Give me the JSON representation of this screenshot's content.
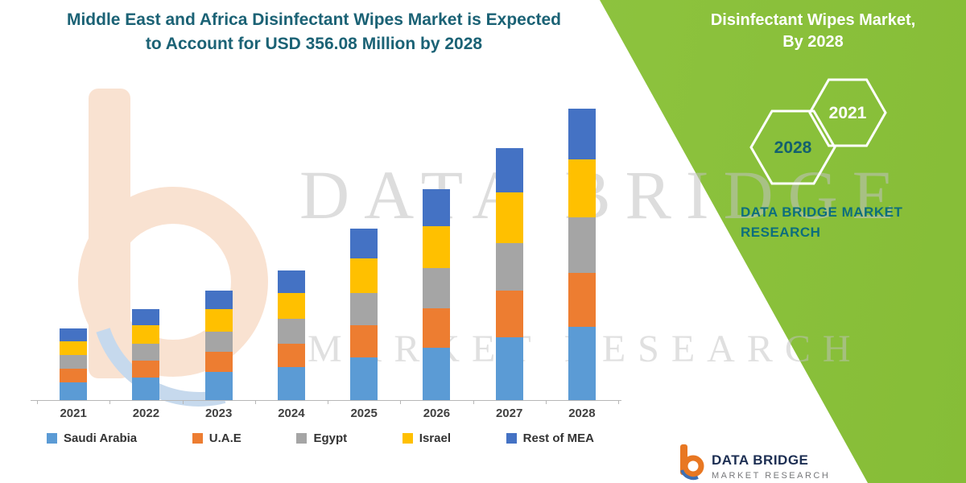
{
  "header": {
    "title_line1": "Middle East and Africa Disinfectant Wipes Market is Expected",
    "title_line2": "to Account for USD 356.08 Million by 2028"
  },
  "side_panel": {
    "heading_line1": "Disinfectant Wipes Market,",
    "heading_line2": "By 2028",
    "hexagons": [
      "2028",
      "2021"
    ],
    "brand_line1": "DATA BRIDGE MARKET",
    "brand_line2": "RESEARCH"
  },
  "watermark": {
    "line1": "DATA BRIDGE",
    "line2": "MARKET RESEARCH"
  },
  "footer_brand": {
    "name": "DATA BRIDGE",
    "tagline": "MARKET RESEARCH"
  },
  "colors": {
    "green": "#8cc23c",
    "teal": "#1b6275",
    "navy": "#1c2e52"
  },
  "chart_data": {
    "type": "bar",
    "stacked": true,
    "unit": "USD Million",
    "title": "Middle East and Africa Disinfectant Wipes Market (USD Million)",
    "xlabel": "",
    "ylabel": "",
    "grid": false,
    "legend_position": "bottom",
    "categories": [
      "2021",
      "2022",
      "2023",
      "2024",
      "2025",
      "2026",
      "2027",
      "2028"
    ],
    "series": [
      {
        "name": "Saudi Arabia",
        "color": "#5b9bd5",
        "values": [
          22,
          28,
          34,
          40,
          52,
          64,
          77,
          89
        ]
      },
      {
        "name": "U.A.E",
        "color": "#ed7d31",
        "values": [
          16,
          20,
          25,
          29,
          39,
          48,
          57,
          66
        ]
      },
      {
        "name": "Egypt",
        "color": "#a5a5a5",
        "values": [
          17,
          21,
          25,
          30,
          40,
          49,
          58,
          68
        ]
      },
      {
        "name": "Israel",
        "color": "#ffc000",
        "values": [
          17,
          22,
          27,
          32,
          42,
          51,
          62,
          71
        ]
      },
      {
        "name": "Rest of MEA",
        "color": "#4472c4",
        "values": [
          15,
          20,
          23,
          27,
          36,
          45,
          54,
          62
        ]
      }
    ],
    "totals": [
      87,
      111,
      134,
      158,
      209,
      257,
      308,
      356
    ],
    "highlight_total_2028": "USD 356.08 Million",
    "ylim": [
      0,
      390
    ]
  }
}
